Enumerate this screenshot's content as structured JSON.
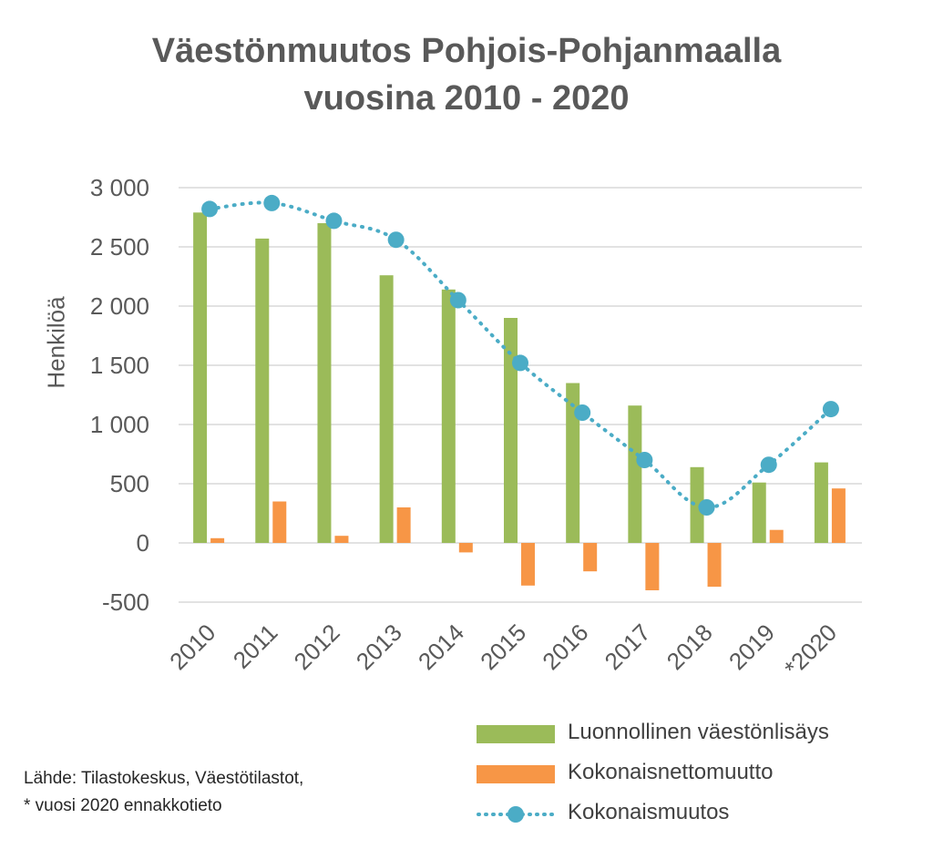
{
  "title_line1": "Väestönmuutos Pohjois-Pohjanmaalla",
  "title_line2": "vuosina 2010 - 2020",
  "source_line1": "Lähde: Tilastokeskus, Väestötilastot,",
  "source_line2": "* vuosi 2020 ennakkotieto",
  "colors": {
    "green": "#9BBB59",
    "orange": "#F79646",
    "teal": "#4BACC6",
    "grid": "#D9D9D9",
    "text": "#595959"
  },
  "chart_data": {
    "type": "bar",
    "title": "Väestönmuutos Pohjois-Pohjanmaalla vuosina 2010 - 2020",
    "xlabel": "",
    "ylabel": "Henkilöä",
    "ylim": [
      -500,
      3000
    ],
    "yticks": [
      -500,
      0,
      500,
      1000,
      1500,
      2000,
      2500,
      3000
    ],
    "ytick_labels": [
      "-500",
      "0",
      "500",
      "1 000",
      "1 500",
      "2 000",
      "2 500",
      "3 000"
    ],
    "categories": [
      "2010",
      "2011",
      "2012",
      "2013",
      "2014",
      "2015",
      "2016",
      "2017",
      "2018",
      "2019",
      "*2020"
    ],
    "grid": true,
    "legend_position": "bottom-right",
    "series": [
      {
        "name": "Luonnollinen väestönlisäys",
        "type": "bar",
        "color": "#9BBB59",
        "values": [
          2790,
          2570,
          2700,
          2260,
          2140,
          1900,
          1350,
          1160,
          640,
          510,
          680
        ]
      },
      {
        "name": "Kokonaisnettomuutto",
        "type": "bar",
        "color": "#F79646",
        "values": [
          40,
          350,
          60,
          300,
          -80,
          -360,
          -240,
          -400,
          -370,
          110,
          460
        ]
      },
      {
        "name": "Kokonaismuutos",
        "type": "line",
        "style": "dotted",
        "marker": "circle",
        "color": "#4BACC6",
        "values": [
          2820,
          2870,
          2720,
          2560,
          2050,
          1520,
          1100,
          700,
          300,
          660,
          1130
        ]
      }
    ]
  }
}
